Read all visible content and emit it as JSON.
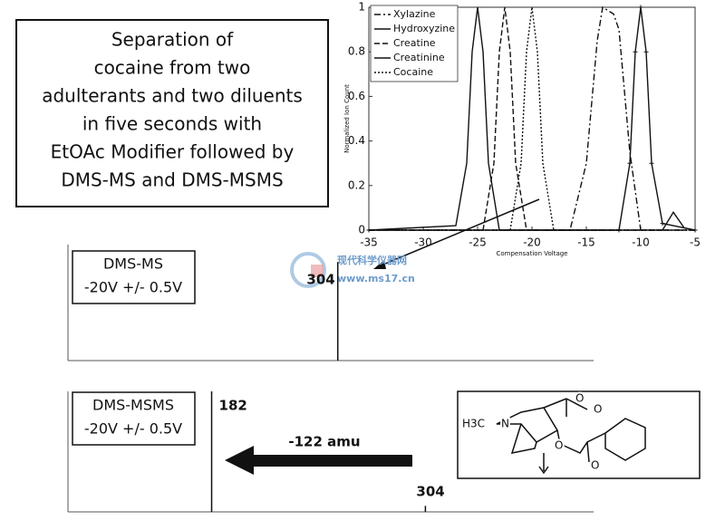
{
  "title_box": {
    "lines": [
      "Separation of",
      "cocaine from two",
      "adulterants and two diluents",
      "in five seconds with",
      "EtOAc Modifier followed by",
      "DMS-MS and DMS-MSMS"
    ]
  },
  "chart_data": [
    {
      "type": "line",
      "x_label": "Compensation Voltage",
      "y_label": "Normalized Ion Count",
      "xlim": [
        -35,
        -5
      ],
      "ylim": [
        0,
        1
      ],
      "xticks": [
        -35,
        -30,
        -25,
        -20,
        -15,
        -10,
        -5
      ],
      "yticks": [
        0,
        0.2,
        0.4,
        0.6,
        0.8,
        1
      ],
      "legend": "top-left",
      "series": [
        {
          "name": "Xylazine",
          "color": "#111111",
          "style": "dash-dot",
          "x": [
            -35,
            -16.5,
            -15,
            -14,
            -13.5,
            -12.5,
            -12,
            -11,
            -10,
            -5
          ],
          "values": [
            0,
            0,
            0.3,
            0.85,
            1,
            0.97,
            0.9,
            0.35,
            0,
            0
          ]
        },
        {
          "name": "Hydroxyzine",
          "color": "#111111",
          "style": "marker",
          "x": [
            -35,
            -12,
            -11,
            -10.5,
            -10,
            -9.5,
            -9,
            -8,
            -5
          ],
          "values": [
            0,
            0,
            0.3,
            0.8,
            1,
            0.8,
            0.3,
            0.03,
            0
          ]
        },
        {
          "name": "Creatine",
          "color": "#111111",
          "style": "dashed",
          "x": [
            -35,
            -24.5,
            -23.5,
            -23,
            -22.5,
            -22,
            -21.5,
            -20.5,
            -5
          ],
          "values": [
            0,
            0,
            0.3,
            0.8,
            1,
            0.8,
            0.3,
            0,
            0
          ]
        },
        {
          "name": "Creatinine",
          "color": "#111111",
          "style": "solid",
          "x": [
            -35,
            -27,
            -26,
            -25.5,
            -25,
            -24.5,
            -24,
            -23,
            -8,
            -7,
            -6,
            -5
          ],
          "values": [
            0,
            0.02,
            0.3,
            0.8,
            1,
            0.8,
            0.3,
            0,
            0,
            0.08,
            0.01,
            0
          ]
        },
        {
          "name": "Cocaine",
          "color": "#111111",
          "style": "dotted",
          "x": [
            -35,
            -22,
            -21,
            -20.5,
            -20,
            -19.5,
            -19,
            -18,
            -5
          ],
          "values": [
            0,
            0,
            0.3,
            0.8,
            1,
            0.8,
            0.3,
            0,
            0
          ]
        }
      ]
    },
    {
      "type": "spectrum",
      "label_lines": [
        "DMS-MS",
        "-20V +/- 0.5V"
      ],
      "xlim": [
        150,
        450
      ],
      "ylim": [
        0,
        1
      ],
      "series": [
        {
          "color": "#111111",
          "x": [
            304
          ],
          "values": [
            0.85
          ]
        }
      ]
    },
    {
      "type": "spectrum",
      "label_lines": [
        "DMS-MSMS",
        "-20V +/- 0.5V"
      ],
      "xlim": [
        100,
        400
      ],
      "ylim": [
        0,
        1
      ],
      "series": [
        {
          "color": "#111111",
          "x": [
            182,
            304
          ],
          "values": [
            1,
            0.05
          ]
        }
      ],
      "annotation": "-122 amu"
    }
  ],
  "structure": {
    "labels": [
      "H3C",
      "N",
      "O",
      "O",
      "O",
      "O"
    ]
  },
  "watermark": {
    "lines": [
      "现代科学仪器网",
      "www.ms17.cn"
    ]
  }
}
